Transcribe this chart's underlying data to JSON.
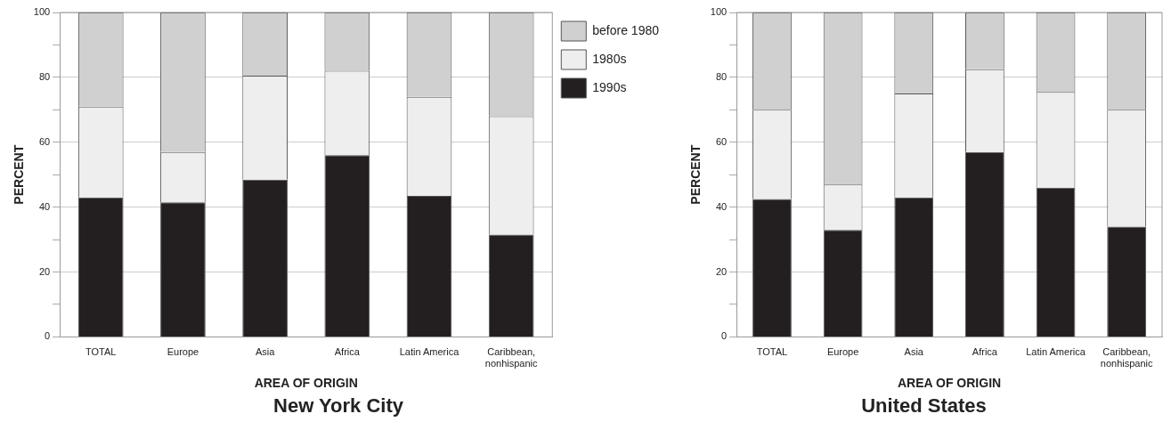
{
  "chart_data": [
    {
      "type": "bar",
      "title": "New York City",
      "xlabel": "AREA OF ORIGIN",
      "ylabel": "PERCENT",
      "stacked": true,
      "legend": "right",
      "grid": "y",
      "categories": [
        "TOTAL",
        "Europe",
        "Asia",
        "Africa",
        "Latin America",
        "Caribbean, nonhispanic"
      ],
      "ylim": [
        0,
        100
      ],
      "yticks": [
        0,
        {
          "value": 10,
          "label": null
        },
        20,
        {
          "value": 30,
          "label": null
        },
        40,
        {
          "value": 50,
          "label": null
        },
        60,
        {
          "value": 70,
          "label": null
        },
        80,
        {
          "value": 90,
          "label": null
        },
        100
      ],
      "series": [
        {
          "name": "1990s",
          "color": "#231f20",
          "values": [
            43,
            41.5,
            48.5,
            56,
            43.5,
            31.5
          ]
        },
        {
          "name": "1980s",
          "color": "#eeeeee",
          "values": [
            28,
            15.5,
            32,
            26,
            30.5,
            36.5
          ]
        },
        {
          "name": "before 1980",
          "color": "#d0d0d0",
          "values": [
            29,
            43,
            19.5,
            18,
            26,
            32
          ]
        }
      ]
    },
    {
      "type": "bar",
      "title": "United States",
      "xlabel": "AREA OF ORIGIN",
      "ylabel": "PERCENT",
      "stacked": true,
      "legend": false,
      "grid": "y",
      "categories": [
        "TOTAL",
        "Europe",
        "Asia",
        "Africa",
        "Latin America",
        "Caribbean, nonhispanic"
      ],
      "ylim": [
        0,
        100
      ],
      "yticks": [
        0,
        {
          "value": 10,
          "label": null
        },
        20,
        {
          "value": 30,
          "label": null
        },
        40,
        {
          "value": 50,
          "label": null
        },
        60,
        {
          "value": 70,
          "label": null
        },
        80,
        {
          "value": 90,
          "label": null
        },
        100
      ],
      "series": [
        {
          "color": "#231f20",
          "values": [
            42.5,
            33,
            43,
            57,
            46,
            34
          ]
        },
        {
          "color": "#eeeeee",
          "values": [
            27.5,
            14,
            32,
            25.5,
            29.5,
            36
          ]
        },
        {
          "color": "#d0d0d0",
          "values": [
            30,
            53,
            25,
            17.5,
            24.5,
            30
          ]
        }
      ]
    }
  ]
}
